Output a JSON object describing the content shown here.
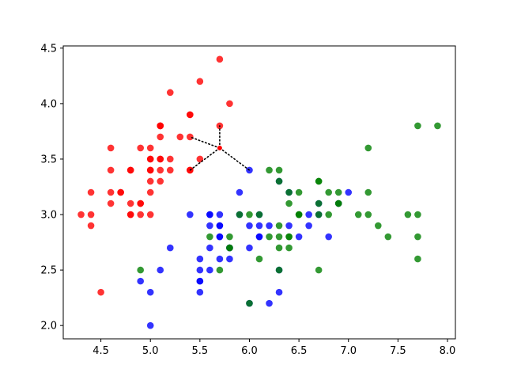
{
  "chart_data": {
    "type": "scatter",
    "title": "",
    "xlabel": "",
    "ylabel": "",
    "xlim": [
      4.12,
      8.08
    ],
    "ylim": [
      1.88,
      4.52
    ],
    "grid": false,
    "x_ticks": [
      4.5,
      5.0,
      5.5,
      6.0,
      6.5,
      7.0,
      7.5,
      8.0
    ],
    "x_tick_labels": [
      "4.5",
      "5.0",
      "5.5",
      "6.0",
      "6.5",
      "7.0",
      "7.5",
      "8.0"
    ],
    "y_ticks": [
      2.0,
      2.5,
      3.0,
      3.5,
      4.0,
      4.5
    ],
    "y_tick_labels": [
      "2.0",
      "2.5",
      "3.0",
      "3.5",
      "4.0",
      "4.5"
    ],
    "series": [
      {
        "color": "#ff0000",
        "points": [
          [
            4.3,
            3.0
          ],
          [
            4.4,
            2.9
          ],
          [
            4.4,
            3.0
          ],
          [
            4.4,
            3.2
          ],
          [
            4.5,
            2.3
          ],
          [
            4.6,
            3.1
          ],
          [
            4.6,
            3.2
          ],
          [
            4.6,
            3.4
          ],
          [
            4.6,
            3.6
          ],
          [
            4.7,
            3.2
          ],
          [
            4.7,
            3.2
          ],
          [
            4.8,
            3.0
          ],
          [
            4.8,
            3.0
          ],
          [
            4.8,
            3.1
          ],
          [
            4.8,
            3.4
          ],
          [
            4.8,
            3.4
          ],
          [
            4.9,
            3.0
          ],
          [
            4.9,
            3.1
          ],
          [
            4.9,
            3.1
          ],
          [
            4.9,
            3.6
          ],
          [
            5.0,
            3.0
          ],
          [
            5.0,
            3.2
          ],
          [
            5.0,
            3.3
          ],
          [
            5.0,
            3.4
          ],
          [
            5.0,
            3.4
          ],
          [
            5.0,
            3.5
          ],
          [
            5.0,
            3.5
          ],
          [
            5.0,
            3.6
          ],
          [
            5.1,
            3.3
          ],
          [
            5.1,
            3.4
          ],
          [
            5.1,
            3.5
          ],
          [
            5.1,
            3.5
          ],
          [
            5.1,
            3.7
          ],
          [
            5.1,
            3.8
          ],
          [
            5.1,
            3.8
          ],
          [
            5.1,
            3.8
          ],
          [
            5.2,
            3.4
          ],
          [
            5.2,
            3.5
          ],
          [
            5.2,
            4.1
          ],
          [
            5.3,
            3.7
          ],
          [
            5.4,
            3.4
          ],
          [
            5.4,
            3.4
          ],
          [
            5.4,
            3.7
          ],
          [
            5.4,
            3.9
          ],
          [
            5.4,
            3.9
          ],
          [
            5.5,
            3.5
          ],
          [
            5.5,
            4.2
          ],
          [
            5.7,
            3.8
          ],
          [
            5.7,
            4.4
          ],
          [
            5.8,
            4.0
          ]
        ]
      },
      {
        "color": "#0000ff",
        "points": [
          [
            4.9,
            2.4
          ],
          [
            5.0,
            2.0
          ],
          [
            5.0,
            2.3
          ],
          [
            5.1,
            2.5
          ],
          [
            5.2,
            2.7
          ],
          [
            5.4,
            3.0
          ],
          [
            5.5,
            2.3
          ],
          [
            5.5,
            2.4
          ],
          [
            5.5,
            2.4
          ],
          [
            5.5,
            2.5
          ],
          [
            5.5,
            2.6
          ],
          [
            5.6,
            2.5
          ],
          [
            5.6,
            2.7
          ],
          [
            5.6,
            2.9
          ],
          [
            5.6,
            3.0
          ],
          [
            5.6,
            3.0
          ],
          [
            5.7,
            2.6
          ],
          [
            5.7,
            2.8
          ],
          [
            5.7,
            2.8
          ],
          [
            5.7,
            2.9
          ],
          [
            5.7,
            2.9
          ],
          [
            5.7,
            3.0
          ],
          [
            5.8,
            2.6
          ],
          [
            5.8,
            2.7
          ],
          [
            5.8,
            2.7
          ],
          [
            5.9,
            3.0
          ],
          [
            5.9,
            3.2
          ],
          [
            6.0,
            2.2
          ],
          [
            6.0,
            2.7
          ],
          [
            6.0,
            2.9
          ],
          [
            6.0,
            3.4
          ],
          [
            6.1,
            2.8
          ],
          [
            6.1,
            2.8
          ],
          [
            6.1,
            2.9
          ],
          [
            6.1,
            3.0
          ],
          [
            6.2,
            2.2
          ],
          [
            6.2,
            2.9
          ],
          [
            6.3,
            2.3
          ],
          [
            6.3,
            2.5
          ],
          [
            6.3,
            3.3
          ],
          [
            6.4,
            2.9
          ],
          [
            6.4,
            3.2
          ],
          [
            6.5,
            2.8
          ],
          [
            6.6,
            2.9
          ],
          [
            6.6,
            3.0
          ],
          [
            6.7,
            3.0
          ],
          [
            6.7,
            3.1
          ],
          [
            6.8,
            2.8
          ],
          [
            6.9,
            3.1
          ],
          [
            7.0,
            3.2
          ]
        ]
      },
      {
        "color": "#008000",
        "points": [
          [
            4.9,
            2.5
          ],
          [
            5.6,
            2.8
          ],
          [
            5.7,
            2.5
          ],
          [
            5.8,
            2.7
          ],
          [
            5.8,
            2.7
          ],
          [
            5.8,
            2.8
          ],
          [
            5.9,
            3.0
          ],
          [
            6.0,
            2.2
          ],
          [
            6.0,
            3.0
          ],
          [
            6.1,
            2.6
          ],
          [
            6.1,
            3.0
          ],
          [
            6.2,
            2.8
          ],
          [
            6.2,
            3.4
          ],
          [
            6.3,
            2.5
          ],
          [
            6.3,
            2.7
          ],
          [
            6.3,
            2.8
          ],
          [
            6.3,
            2.9
          ],
          [
            6.3,
            3.3
          ],
          [
            6.3,
            3.4
          ],
          [
            6.4,
            2.7
          ],
          [
            6.4,
            2.8
          ],
          [
            6.4,
            2.8
          ],
          [
            6.4,
            3.1
          ],
          [
            6.4,
            3.2
          ],
          [
            6.5,
            3.0
          ],
          [
            6.5,
            3.0
          ],
          [
            6.5,
            3.0
          ],
          [
            6.5,
            3.2
          ],
          [
            6.7,
            2.5
          ],
          [
            6.7,
            3.0
          ],
          [
            6.7,
            3.1
          ],
          [
            6.7,
            3.3
          ],
          [
            6.7,
            3.3
          ],
          [
            6.8,
            3.0
          ],
          [
            6.8,
            3.2
          ],
          [
            6.9,
            3.1
          ],
          [
            6.9,
            3.1
          ],
          [
            6.9,
            3.2
          ],
          [
            7.1,
            3.0
          ],
          [
            7.2,
            3.0
          ],
          [
            7.2,
            3.2
          ],
          [
            7.2,
            3.6
          ],
          [
            7.3,
            2.9
          ],
          [
            7.4,
            2.8
          ],
          [
            7.6,
            3.0
          ],
          [
            7.7,
            2.6
          ],
          [
            7.7,
            2.8
          ],
          [
            7.7,
            3.0
          ],
          [
            7.7,
            3.8
          ],
          [
            7.9,
            3.8
          ]
        ]
      }
    ],
    "query_point": {
      "x": 5.7,
      "y": 3.6,
      "color": "#ff0000"
    },
    "neighbor_lines": {
      "color": "#000000",
      "style": "dotted",
      "targets": [
        [
          5.7,
          3.8
        ],
        [
          5.4,
          3.7
        ],
        [
          5.4,
          3.4
        ],
        [
          6.0,
          3.4
        ]
      ]
    }
  }
}
